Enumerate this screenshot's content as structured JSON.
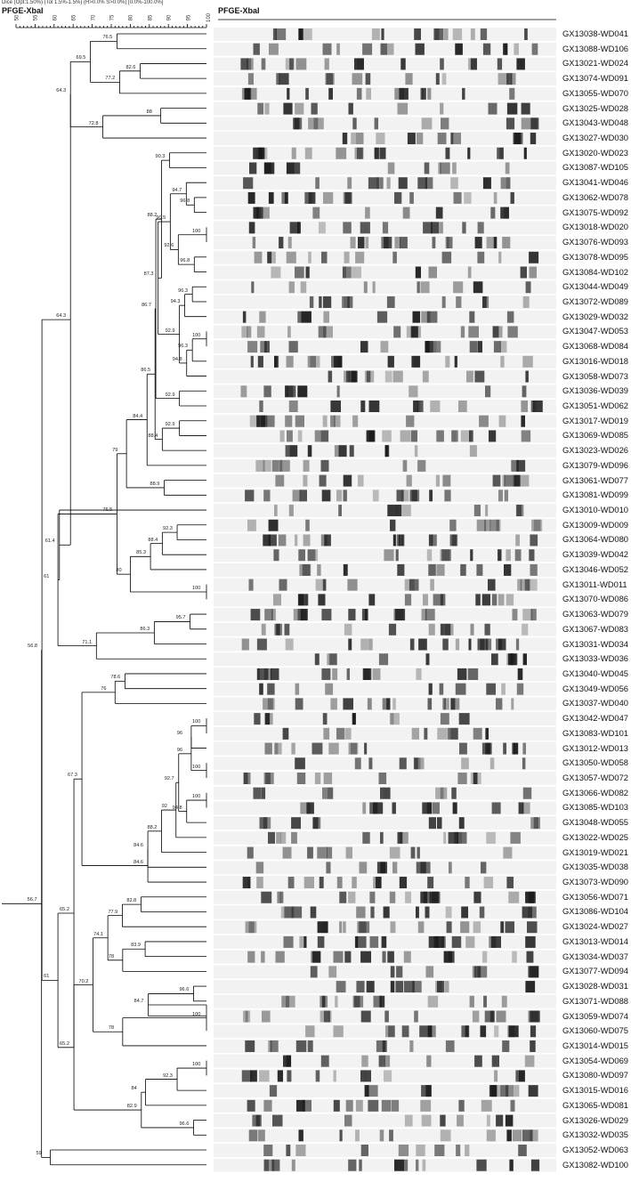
{
  "header": {
    "settings": "Dice (Opt:1.50%) (Tol 1.5%-1.5%) (H>0.0% S>0.0%) [0.0%-100.0%]",
    "tree_title": "PFGE-XbaI",
    "gel_title": "PFGE-XbaI"
  },
  "scale": {
    "ticks": [
      "50",
      "55",
      "60",
      "65",
      "70",
      "75",
      "80",
      "85",
      "90",
      "95",
      "100"
    ]
  },
  "isolates": [
    "GX13038-WD041",
    "GX13088-WD106",
    "GX13021-WD024",
    "GX13074-WD091",
    "GX13055-WD070",
    "GX13025-WD028",
    "GX13043-WD048",
    "GX13027-WD030",
    "GX13020-WD023",
    "GX13087-WD105",
    "GX13041-WD046",
    "GX13062-WD078",
    "GX13075-WD092",
    "GX13018-WD020",
    "GX13076-WD093",
    "GX13078-WD095",
    "GX13084-WD102",
    "GX13044-WD049",
    "GX13072-WD089",
    "GX13029-WD032",
    "GX13047-WD053",
    "GX13068-WD084",
    "GX13016-WD018",
    "GX13058-WD073",
    "GX13036-WD039",
    "GX13051-WD062",
    "GX13017-WD019",
    "GX13069-WD085",
    "GX13023-WD026",
    "GX13079-WD096",
    "GX13061-WD077",
    "GX13081-WD099",
    "GX13010-WD010",
    "GX13009-WD009",
    "GX13064-WD080",
    "GX13039-WD042",
    "GX13046-WD052",
    "GX13011-WD011",
    "GX13070-WD086",
    "GX13063-WD079",
    "GX13067-WD083",
    "GX13031-WD034",
    "GX13033-WD036",
    "GX13040-WD045",
    "GX13049-WD056",
    "GX13037-WD040",
    "GX13042-WD047",
    "GX13083-WD101",
    "GX13012-WD013",
    "GX13050-WD058",
    "GX13057-WD072",
    "GX13066-WD082",
    "GX13085-WD103",
    "GX13048-WD055",
    "GX13022-WD025",
    "GX13019-WD021",
    "GX13035-WD038",
    "GX13073-WD090",
    "GX13056-WD071",
    "GX13086-WD104",
    "GX13024-WD027",
    "GX13013-WD014",
    "GX13034-WD037",
    "GX13077-WD094",
    "GX13028-WD031",
    "GX13071-WD088",
    "GX13059-WD074",
    "GX13060-WD075",
    "GX13014-WD015",
    "GX13054-WD069",
    "GX13080-WD097",
    "GX13015-WD016",
    "GX13065-WD081",
    "GX13026-WD029",
    "GX13032-WD035",
    "GX13052-WD063",
    "GX13082-WD100"
  ],
  "dendrogram": {
    "nodes": [
      {
        "a": 0,
        "b": 1,
        "sim": 76.5
      },
      {
        "a": 2,
        "b": 3,
        "sim": 82.6
      },
      {
        "a": "n1",
        "b": 4,
        "sim": 77.2
      },
      {
        "a": "n0",
        "b": "n2",
        "sim": 69.5
      },
      {
        "a": 5,
        "b": 6,
        "sim": 88
      },
      {
        "a": "n4",
        "b": 7,
        "sim": 72.8
      },
      {
        "a": "n3",
        "b": "n5",
        "sim": 64.3
      },
      {
        "a": 8,
        "b": 9,
        "sim": 90.3
      },
      {
        "a": 11,
        "b": 12,
        "sim": 96.8
      },
      {
        "a": 10,
        "b": "n8",
        "sim": 94.7
      },
      {
        "a": 13,
        "b": 14,
        "sim": 100
      },
      {
        "a": 15,
        "b": 16,
        "sim": 96.8
      },
      {
        "a": "n10",
        "b": "n11",
        "sim": 92.6
      },
      {
        "a": "n9",
        "b": "n12",
        "sim": 90.5
      },
      {
        "a": 17,
        "b": 18,
        "sim": 96.3
      },
      {
        "a": "n14",
        "b": 19,
        "sim": 94.3
      },
      {
        "a": 20,
        "b": 21,
        "sim": 100
      },
      {
        "a": "n16",
        "b": 22,
        "sim": 96.3
      },
      {
        "a": "n17",
        "b": 23,
        "sim": 94.8
      },
      {
        "a": "n15",
        "b": "n18",
        "sim": 92.9
      },
      {
        "a": "n13",
        "b": "n19",
        "sim": 87.3
      },
      {
        "a": "n7",
        "b": "n20",
        "sim": 88.2
      },
      {
        "a": 24,
        "b": 25,
        "sim": 92.9
      },
      {
        "a": "n21",
        "b": "n22",
        "sim": 86.7
      },
      {
        "a": 26,
        "b": 27,
        "sim": 92.9
      },
      {
        "a": "n24",
        "b": 28,
        "sim": 88.4
      },
      {
        "a": "n23",
        "b": "n25",
        "sim": 86.5
      },
      {
        "a": "n26",
        "b": 29,
        "sim": 84.4
      },
      {
        "a": 30,
        "b": 31,
        "sim": 88.9
      },
      {
        "a": "n27",
        "b": "n28",
        "sim": 79
      },
      {
        "a": 33,
        "b": 34,
        "sim": 92.3
      },
      {
        "a": "n30",
        "b": 35,
        "sim": 88.4
      },
      {
        "a": "n31",
        "b": 36,
        "sim": 85.3
      },
      {
        "a": 37,
        "b": 38,
        "sim": 100
      },
      {
        "a": "n32",
        "b": "n33",
        "sim": 80
      },
      {
        "a": "n29",
        "b": "n34",
        "sim": 76.5
      },
      {
        "a": 39,
        "b": 40,
        "sim": 95.7
      },
      {
        "a": "n36",
        "b": 41,
        "sim": 86.3
      },
      {
        "a": "n37",
        "b": 42,
        "sim": 71.1
      },
      {
        "a": "n35",
        "b": "n38",
        "sim": 61
      },
      {
        "a": "n39",
        "b": 32,
        "sim": 61.4
      },
      {
        "a": "n6",
        "b": "n40",
        "sim": 64.3
      },
      {
        "a": 43,
        "b": 44,
        "sim": 78.6
      },
      {
        "a": "n42",
        "b": 45,
        "sim": 76
      },
      {
        "a": 46,
        "b": 47,
        "sim": 100
      },
      {
        "a": 49,
        "b": 50,
        "sim": 100
      },
      {
        "a": "n44",
        "b": 48,
        "sim": 96
      },
      {
        "a": "n46",
        "b": "n45",
        "sim": 96
      },
      {
        "a": 51,
        "b": 52,
        "sim": 100
      },
      {
        "a": "n48",
        "b": 53,
        "sim": 94.8
      },
      {
        "a": "n47",
        "b": "n49",
        "sim": 92.7
      },
      {
        "a": "n50",
        "b": 54,
        "sim": 92
      },
      {
        "a": "n51",
        "b": 55,
        "sim": 88.2
      },
      {
        "a": "n52",
        "b": 56,
        "sim": 84.6
      },
      {
        "a": "n53",
        "b": 57,
        "sim": 84.6
      },
      {
        "a": "n43",
        "b": "n54",
        "sim": 67.3
      },
      {
        "a": 58,
        "b": 59,
        "sim": 82.8
      },
      {
        "a": 61,
        "b": 62,
        "sim": 83.9
      },
      {
        "a": "n57",
        "b": 63,
        "sim": 78
      },
      {
        "a": "n56",
        "b": 60,
        "sim": 77.9
      },
      {
        "a": "n59",
        "b": "n58",
        "sim": 74.1
      },
      {
        "a": 64,
        "b": 65,
        "sim": 96.6
      },
      {
        "a": "n61",
        "b": 66,
        "sim": 84.7
      },
      {
        "a": "n62",
        "b": 67,
        "sim": 100
      },
      {
        "a": "n63",
        "b": 68,
        "sim": 78
      },
      {
        "a": "n60",
        "b": "n64",
        "sim": 70.2
      },
      {
        "a": 69,
        "b": 70,
        "sim": 100
      },
      {
        "a": "n66",
        "b": 71,
        "sim": 92.3
      },
      {
        "a": "n67",
        "b": 72,
        "sim": 84
      },
      {
        "a": 73,
        "b": 74,
        "sim": 96.6
      },
      {
        "a": "n68",
        "b": "n69",
        "sim": 82.9
      },
      {
        "a": "n65",
        "b": "n70",
        "sim": 65.2
      },
      {
        "a": "n55",
        "b": "n71",
        "sim": 65.2
      },
      {
        "a": "n72",
        "b": "n71",
        "sim": 61
      },
      {
        "a": "n41",
        "b": "n73",
        "sim": 56.8
      },
      {
        "a": 75,
        "b": 76,
        "sim": 59
      },
      {
        "a": "n74",
        "b": "n75",
        "sim": 56.7
      }
    ]
  },
  "colors": {
    "line": "#000000",
    "band": "#1a1a1a",
    "lane": "#f2f2f2"
  }
}
